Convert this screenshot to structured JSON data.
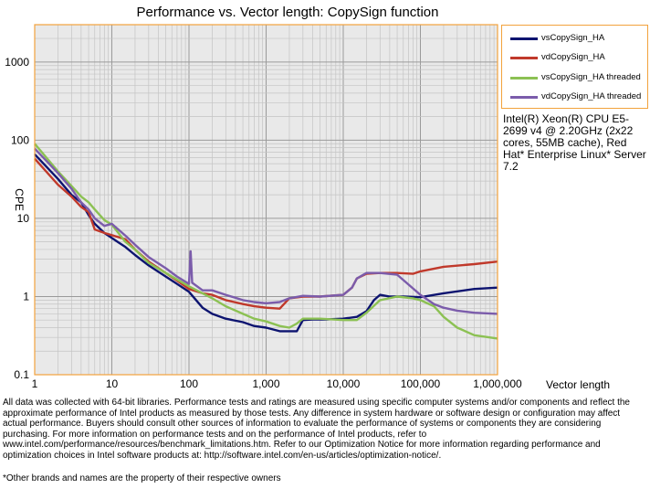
{
  "chart_data": {
    "type": "line",
    "title": "Performance vs. Vector length: CopySign function",
    "xlabel": "Vector length",
    "ylabel": "CPE",
    "xscale": "log",
    "yscale": "log",
    "xlim": [
      1,
      1000000
    ],
    "ylim": [
      0.1,
      3000
    ],
    "x_ticks": [
      1,
      10,
      100,
      1000,
      10000,
      100000,
      1000000
    ],
    "x_tick_labels": [
      "1",
      "10",
      "100",
      "1,000",
      "10,000",
      "100,000",
      "1,000,000"
    ],
    "y_ticks": [
      0.1,
      1,
      10,
      100,
      1000
    ],
    "y_tick_labels": [
      "0.1",
      "1",
      "10",
      "100",
      "1000"
    ],
    "grid": true,
    "legend_position": "top-right",
    "series": [
      {
        "name": "vsCopySign_HA",
        "color": "#0d1470",
        "x": [
          1,
          2,
          3,
          4,
          5,
          6,
          8,
          10,
          15,
          20,
          30,
          50,
          70,
          100,
          150,
          200,
          300,
          500,
          700,
          1000,
          1500,
          2000,
          2500,
          3000,
          4000,
          6000,
          10000,
          15000,
          20000,
          25000,
          30000,
          40000,
          60000,
          100000,
          200000,
          500000,
          1000000
        ],
        "y": [
          66,
          32,
          20,
          16,
          11,
          8.5,
          6.5,
          5.6,
          4.3,
          3.4,
          2.5,
          1.8,
          1.45,
          1.15,
          0.72,
          0.6,
          0.52,
          0.47,
          0.42,
          0.4,
          0.36,
          0.36,
          0.36,
          0.5,
          0.51,
          0.51,
          0.52,
          0.55,
          0.65,
          0.9,
          1.05,
          1.0,
          1.0,
          0.98,
          1.1,
          1.25,
          1.3
        ]
      },
      {
        "name": "vdCopySign_HA",
        "color": "#c0392b",
        "x": [
          1,
          2,
          3,
          4,
          5,
          6,
          8,
          10,
          15,
          20,
          30,
          50,
          70,
          100,
          150,
          200,
          300,
          500,
          700,
          1000,
          1500,
          2000,
          3000,
          5000,
          10000,
          13000,
          15000,
          20000,
          30000,
          50000,
          80000,
          100000,
          200000,
          500000,
          1000000
        ],
        "y": [
          58,
          27,
          19,
          14,
          12,
          7.2,
          6.5,
          6.1,
          5.4,
          4.0,
          2.8,
          2.0,
          1.6,
          1.25,
          1.1,
          1.05,
          0.9,
          0.8,
          0.75,
          0.72,
          0.7,
          0.95,
          1.0,
          1.0,
          1.05,
          1.3,
          1.7,
          1.95,
          2.0,
          2.0,
          1.95,
          2.1,
          2.4,
          2.6,
          2.8
        ]
      },
      {
        "name": "vsCopySign_HA threaded",
        "color": "#8cc153",
        "x": [
          1,
          2,
          3,
          4,
          5,
          6,
          8,
          10,
          15,
          20,
          30,
          50,
          70,
          100,
          150,
          200,
          300,
          500,
          700,
          1000,
          1500,
          2000,
          2500,
          3000,
          5000,
          10000,
          15000,
          20000,
          30000,
          50000,
          80000,
          100000,
          150000,
          200000,
          300000,
          500000,
          1000000
        ],
        "y": [
          90,
          40,
          26,
          19,
          16,
          13,
          9.5,
          8.3,
          5.0,
          4.0,
          2.7,
          2.0,
          1.65,
          1.35,
          1.1,
          0.95,
          0.75,
          0.6,
          0.52,
          0.48,
          0.42,
          0.4,
          0.45,
          0.52,
          0.52,
          0.5,
          0.5,
          0.62,
          0.9,
          1.0,
          0.95,
          0.9,
          0.75,
          0.55,
          0.4,
          0.32,
          0.29
        ]
      },
      {
        "name": "vdCopySign_HA threaded",
        "color": "#7b5cab",
        "x": [
          1,
          2,
          3,
          4,
          5,
          6,
          8,
          10,
          15,
          20,
          30,
          50,
          70,
          100,
          105,
          110,
          150,
          200,
          300,
          500,
          700,
          1000,
          1500,
          2000,
          3000,
          5000,
          10000,
          13000,
          15000,
          20000,
          30000,
          50000,
          100000,
          150000,
          200000,
          300000,
          500000,
          1000000
        ],
        "y": [
          78,
          38,
          24,
          16,
          13,
          10,
          8,
          8.5,
          6.0,
          4.6,
          3.2,
          2.3,
          1.8,
          1.45,
          3.8,
          1.5,
          1.2,
          1.2,
          1.05,
          0.9,
          0.85,
          0.82,
          0.85,
          0.95,
          1.02,
          1.0,
          1.05,
          1.3,
          1.7,
          2.0,
          2.0,
          1.9,
          1.05,
          0.8,
          0.72,
          0.66,
          0.62,
          0.6
        ]
      }
    ]
  },
  "sysinfo": "Intel(R) Xeon(R) CPU E5-2699 v4 @ 2.20GHz (2x22 cores, 55MB cache), Red Hat* Enterprise Linux* Server 7.2",
  "footer": "All data was collected with 64-bit libraries. Performance tests and ratings are measured using specific computer systems and/or components and reflect the approximate performance of Intel products as measured by those tests. Any difference in system hardware or software design or configuration may affect actual performance. Buyers should consult other sources of information to evaluate the performance of systems or components they are considering purchasing. For more information on performance tests and on the performance of Intel products, refer to www.intel.com/performance/resources/benchmark_limitations.htm. Refer to our Optimization Notice for more information regarding performance and optimization choices in Intel software products at: http://software.intel.com/en-us/articles/optimization-notice/.",
  "footnote": "*Other brands and names are the property of their respective owners"
}
